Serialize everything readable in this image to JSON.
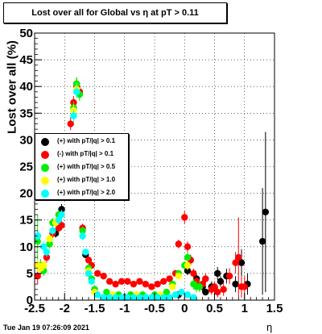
{
  "chart_data": {
    "type": "scatter",
    "title": "Lost over all for Global vs   η at pT > 0.11",
    "xlabel": "η",
    "ylabel": "Lost over all (%)",
    "xlim": [
      -2.5,
      1.5
    ],
    "ylim": [
      0,
      50
    ],
    "xticks": [
      "-2.5",
      "-2",
      "-1.5",
      "-1",
      "-0.5",
      "0",
      "0.5",
      "1",
      "1.5"
    ],
    "yticks": [
      "0",
      "5",
      "10",
      "15",
      "20",
      "25",
      "30",
      "35",
      "40",
      "45",
      "50"
    ],
    "grid": true,
    "legend_position": "left-middle",
    "series": [
      {
        "name": "(+) with pT/|q| > 0.1",
        "color": "#000000",
        "points": [
          [
            -2.45,
            12.0,
            1.0
          ],
          [
            -2.4,
            6.0,
            1.0
          ],
          [
            -2.35,
            5.5,
            0.8
          ],
          [
            -2.15,
            12.5,
            0.8
          ],
          [
            -2.05,
            17.0,
            1.0
          ],
          [
            -1.85,
            36.0,
            1.2
          ],
          [
            -1.8,
            40.5,
            1.2
          ],
          [
            -1.75,
            39.0,
            1.2
          ],
          [
            -1.65,
            8.5,
            0.6
          ],
          [
            -1.6,
            5.0,
            0.6
          ],
          [
            -1.5,
            2.0,
            0.4
          ],
          [
            -1.0,
            0.5,
            0.2
          ],
          [
            -0.5,
            0.5,
            0.2
          ],
          [
            -0.1,
            1.0,
            0.3
          ],
          [
            0.05,
            5.5,
            0.8
          ],
          [
            0.1,
            7.5,
            1.0
          ],
          [
            0.2,
            4.0,
            0.9
          ],
          [
            0.3,
            2.5,
            0.8
          ],
          [
            0.35,
            1.5,
            0.6
          ],
          [
            0.45,
            2.5,
            1.0
          ],
          [
            0.55,
            5.0,
            1.2
          ],
          [
            0.6,
            3.5,
            1.0
          ],
          [
            0.7,
            4.5,
            1.4
          ],
          [
            0.85,
            3.0,
            1.5
          ],
          [
            0.95,
            7.0,
            2.5
          ],
          [
            1.05,
            3.0,
            2.0
          ],
          [
            1.3,
            11.0,
            10.0
          ],
          [
            1.35,
            16.5,
            15.0
          ]
        ]
      },
      {
        "name": "(-) with pT/|q| > 0.1",
        "color": "#ff0000",
        "points": [
          [
            -2.45,
            4.5,
            1.5
          ],
          [
            -2.4,
            6.0,
            1.2
          ],
          [
            -2.3,
            8.0,
            1.0
          ],
          [
            -2.2,
            12.5,
            0.9
          ],
          [
            -2.1,
            13.5,
            0.9
          ],
          [
            -2.05,
            14.0,
            0.9
          ],
          [
            -1.9,
            33.0,
            1.2
          ],
          [
            -1.85,
            37.0,
            1.2
          ],
          [
            -1.8,
            40.0,
            1.2
          ],
          [
            -1.75,
            39.0,
            1.2
          ],
          [
            -1.7,
            13.5,
            0.8
          ],
          [
            -1.6,
            7.5,
            0.6
          ],
          [
            -1.55,
            6.5,
            0.6
          ],
          [
            -1.45,
            5.0,
            0.5
          ],
          [
            -1.35,
            4.5,
            0.5
          ],
          [
            -1.25,
            3.5,
            0.4
          ],
          [
            -1.15,
            3.0,
            0.4
          ],
          [
            -1.05,
            3.5,
            0.4
          ],
          [
            -0.95,
            3.5,
            0.4
          ],
          [
            -0.85,
            3.0,
            0.4
          ],
          [
            -0.75,
            3.5,
            0.4
          ],
          [
            -0.65,
            3.0,
            0.4
          ],
          [
            -0.55,
            2.5,
            0.4
          ],
          [
            -0.45,
            3.0,
            0.4
          ],
          [
            -0.35,
            3.5,
            0.4
          ],
          [
            -0.25,
            4.0,
            0.5
          ],
          [
            -0.15,
            5.0,
            0.5
          ],
          [
            -0.1,
            10.5,
            0.8
          ],
          [
            0.0,
            15.5,
            1.2
          ],
          [
            0.05,
            10.0,
            1.0
          ],
          [
            0.1,
            7.5,
            1.0
          ],
          [
            0.15,
            5.0,
            0.9
          ],
          [
            0.2,
            3.5,
            0.8
          ],
          [
            0.25,
            2.5,
            0.8
          ],
          [
            0.3,
            3.0,
            1.0
          ],
          [
            0.35,
            4.0,
            1.0
          ],
          [
            0.45,
            2.0,
            1.0
          ],
          [
            0.5,
            2.5,
            1.0
          ],
          [
            0.55,
            1.5,
            1.0
          ],
          [
            0.65,
            2.0,
            1.2
          ],
          [
            0.75,
            4.5,
            1.5
          ],
          [
            0.85,
            7.0,
            2.0
          ],
          [
            0.9,
            8.0,
            7.5
          ],
          [
            0.95,
            2.5,
            2.0
          ],
          [
            1.0,
            2.5,
            2.0
          ]
        ]
      },
      {
        "name": "(+) with pT/|q| > 0.5",
        "color": "#00ee00",
        "points": [
          [
            -2.45,
            11.0,
            5.0
          ],
          [
            -2.4,
            6.5,
            1.2
          ],
          [
            -2.35,
            5.5,
            1.0
          ],
          [
            -2.25,
            10.5,
            0.9
          ],
          [
            -2.2,
            14.5,
            0.9
          ],
          [
            -2.1,
            16.0,
            0.9
          ],
          [
            -1.85,
            36.0,
            1.2
          ],
          [
            -1.8,
            40.5,
            1.2
          ],
          [
            -1.75,
            38.5,
            1.2
          ],
          [
            -1.7,
            13.0,
            0.8
          ],
          [
            -1.6,
            6.0,
            0.6
          ],
          [
            -1.55,
            4.0,
            0.5
          ],
          [
            -1.5,
            2.0,
            0.4
          ],
          [
            -1.3,
            1.5,
            0.3
          ],
          [
            -1.1,
            1.0,
            0.3
          ],
          [
            -0.9,
            1.0,
            0.3
          ],
          [
            -0.7,
            1.0,
            0.3
          ],
          [
            -0.5,
            1.0,
            0.3
          ],
          [
            -0.3,
            1.5,
            0.3
          ],
          [
            -0.2,
            3.0,
            0.4
          ],
          [
            -0.1,
            5.0,
            0.5
          ],
          [
            0.0,
            6.5,
            0.8
          ],
          [
            0.05,
            8.0,
            1.0
          ],
          [
            0.15,
            3.0,
            1.0
          ],
          [
            0.2,
            2.5,
            1.0
          ],
          [
            0.25,
            2.5,
            1.0
          ]
        ]
      },
      {
        "name": "(+) with pT/|q| > 1.0",
        "color": "#ffff00",
        "points": [
          [
            -2.45,
            6.5,
            1.2
          ],
          [
            -2.4,
            6.0,
            1.0
          ],
          [
            -2.35,
            6.5,
            1.0
          ],
          [
            -2.25,
            11.5,
            0.9
          ],
          [
            -2.15,
            14.5,
            0.9
          ],
          [
            -1.85,
            35.5,
            1.2
          ],
          [
            -1.8,
            39.5,
            1.2
          ],
          [
            -1.7,
            12.0,
            0.8
          ],
          [
            -1.6,
            5.5,
            0.6
          ],
          [
            -1.5,
            1.5,
            0.4
          ],
          [
            -1.2,
            1.0,
            0.3
          ],
          [
            -0.8,
            1.0,
            0.3
          ],
          [
            -0.4,
            1.0,
            0.3
          ],
          [
            -0.2,
            2.5,
            0.4
          ],
          [
            -0.1,
            4.5,
            0.5
          ],
          [
            0.05,
            6.5,
            0.9
          ]
        ]
      },
      {
        "name": "(+) with pT/|q| > 2.0",
        "color": "#00ffff",
        "points": [
          [
            -2.45,
            12.0,
            1.0
          ],
          [
            -2.35,
            10.0,
            1.0
          ],
          [
            -2.3,
            9.0,
            0.9
          ],
          [
            -2.2,
            13.0,
            0.9
          ],
          [
            -2.1,
            15.0,
            0.9
          ],
          [
            -2.05,
            16.0,
            0.9
          ],
          [
            -1.85,
            34.5,
            1.2
          ],
          [
            -1.8,
            39.0,
            1.2
          ],
          [
            -1.7,
            12.0,
            0.8
          ],
          [
            -1.65,
            9.0,
            0.6
          ],
          [
            -1.6,
            5.0,
            0.6
          ],
          [
            -1.55,
            3.5,
            0.5
          ],
          [
            -1.45,
            1.0,
            0.3
          ],
          [
            -1.35,
            0.5,
            0.3
          ],
          [
            -1.25,
            0.5,
            0.3
          ],
          [
            -1.15,
            0.5,
            0.3
          ],
          [
            -1.05,
            0.5,
            0.3
          ],
          [
            -0.95,
            0.5,
            0.3
          ],
          [
            -0.85,
            0.5,
            0.3
          ],
          [
            -0.75,
            0.5,
            0.3
          ],
          [
            -0.65,
            0.5,
            0.3
          ],
          [
            -0.55,
            0.5,
            0.3
          ],
          [
            -0.45,
            0.5,
            0.3
          ],
          [
            -0.35,
            0.5,
            0.3
          ],
          [
            -0.25,
            0.5,
            0.3
          ],
          [
            -0.15,
            1.0,
            0.3
          ],
          [
            -0.05,
            1.5,
            0.4
          ],
          [
            0.05,
            1.0,
            0.5
          ],
          [
            0.15,
            0.5,
            0.5
          ]
        ]
      }
    ]
  },
  "footer": {
    "timestamp": "Tue Jan 19 07:26:09 2021"
  }
}
